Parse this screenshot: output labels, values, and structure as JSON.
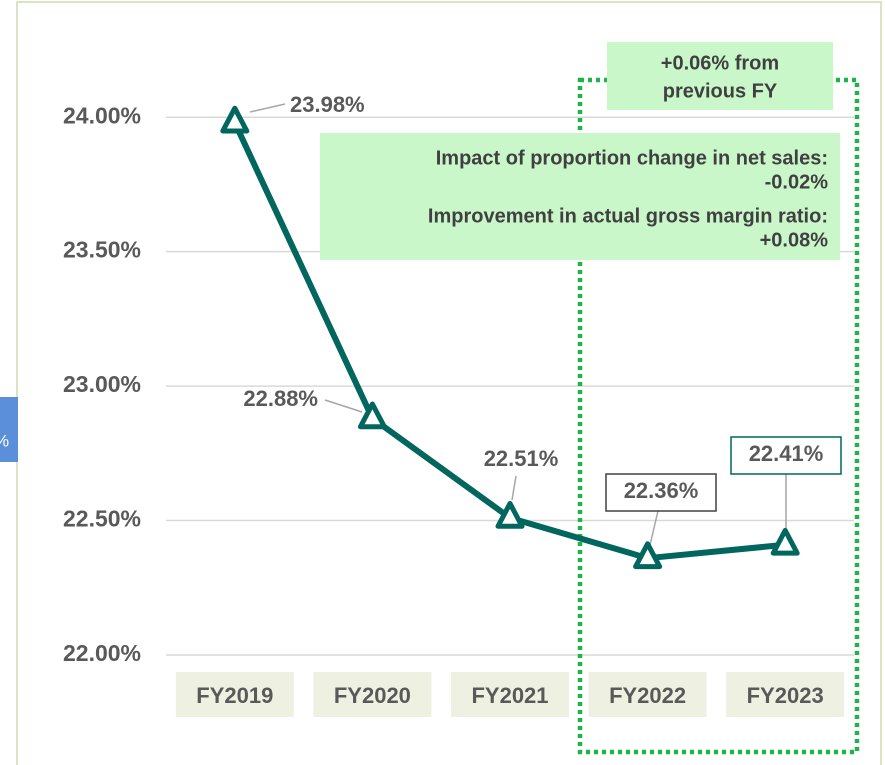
{
  "chart_data": {
    "type": "line",
    "categories": [
      "FY2019",
      "FY2020",
      "FY2021",
      "FY2022",
      "FY2023"
    ],
    "values": [
      23.98,
      22.88,
      22.51,
      22.36,
      22.41
    ],
    "value_labels": [
      "23.98%",
      "22.88%",
      "22.51%",
      "22.36%",
      "22.41%"
    ],
    "boxed_labels": [
      false,
      false,
      false,
      true,
      true
    ],
    "color": "#00665e",
    "ylim": [
      22,
      24.25
    ],
    "yticks": [
      {
        "value": 22,
        "label": "22.00%"
      },
      {
        "value": 22.5,
        "label": "22.50%"
      },
      {
        "value": 23,
        "label": "23.00%"
      },
      {
        "value": 23.5,
        "label": "23.50%"
      },
      {
        "value": 24,
        "label": "24.00%"
      }
    ],
    "grid": true,
    "annotations": [
      [
        "+0.06% from",
        "previous FY"
      ],
      [
        "Impact of proportion change in net sales:",
        "-0.02%",
        "Improvement in actual gross margin ratio:",
        "+0.08%"
      ]
    ],
    "side_label": "%"
  }
}
